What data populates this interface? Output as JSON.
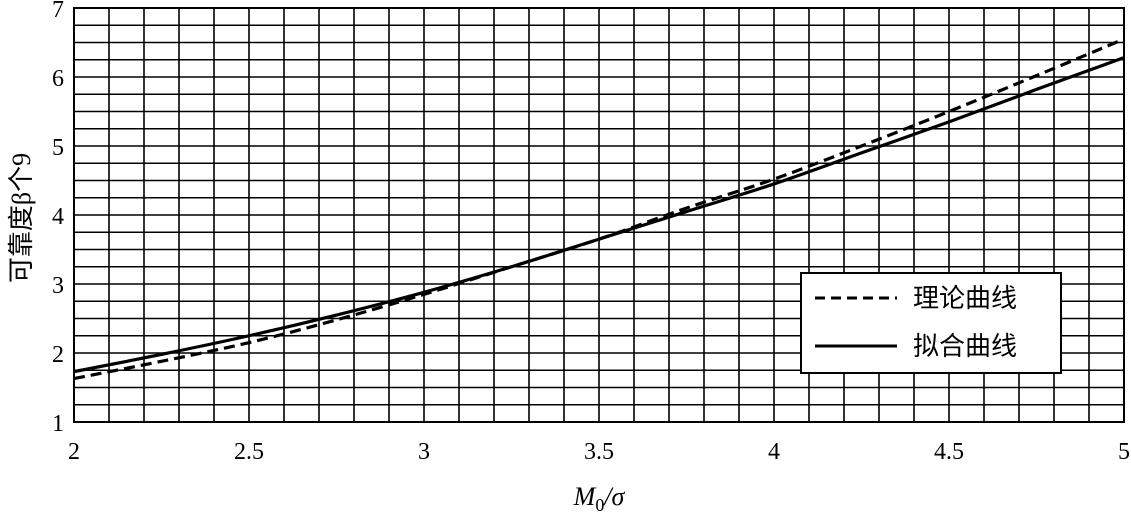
{
  "chart_data": {
    "type": "line",
    "xlabel": "M0/σ",
    "xlabel_parts": {
      "main": "M",
      "sub": "0",
      "rest": "/σ"
    },
    "ylabel": "可靠度β个9",
    "xlim": [
      2,
      5
    ],
    "ylim": [
      1,
      7
    ],
    "x_ticks": [
      2,
      2.5,
      3,
      3.5,
      4,
      4.5,
      5
    ],
    "x_tick_labels": [
      "2",
      "2.5",
      "3",
      "3.5",
      "4",
      "4.5",
      "5"
    ],
    "y_ticks": [
      1,
      2,
      3,
      4,
      5,
      6,
      7
    ],
    "y_tick_labels": [
      "1",
      "2",
      "3",
      "4",
      "5",
      "6",
      "7"
    ],
    "grid": true,
    "grid_x_step": 0.1,
    "grid_y_step": 0.25,
    "legend_position": "right",
    "series": [
      {
        "name": "理论曲线",
        "style": "dashed",
        "x": [
          2.0,
          2.25,
          2.5,
          2.75,
          3.0,
          3.25,
          3.5,
          3.75,
          4.0,
          4.25,
          4.5,
          4.75,
          5.0
        ],
        "values": [
          1.63,
          1.88,
          2.15,
          2.48,
          2.85,
          3.25,
          3.65,
          4.1,
          4.52,
          5.0,
          5.5,
          6.02,
          6.55
        ]
      },
      {
        "name": "拟合曲线",
        "style": "solid",
        "x": [
          2.0,
          2.25,
          2.5,
          2.75,
          3.0,
          3.25,
          3.5,
          3.75,
          4.0,
          4.25,
          4.5,
          4.75,
          5.0
        ],
        "values": [
          1.73,
          1.98,
          2.25,
          2.55,
          2.88,
          3.25,
          3.65,
          4.05,
          4.45,
          4.9,
          5.35,
          5.82,
          6.28
        ]
      }
    ]
  }
}
